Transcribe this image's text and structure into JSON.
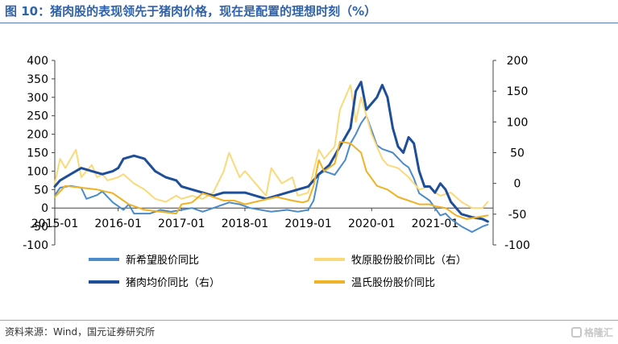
{
  "title": "图 10：猪肉股的表现领先于猪肉价格，现在是配置的理想时刻（%）",
  "source": "资料来源：Wind，国元证券研究所",
  "watermark": "格隆汇",
  "chart_data": {
    "type": "line",
    "left_axis": {
      "min": -100,
      "max": 400,
      "ticks": [
        -100,
        -50,
        0,
        50,
        100,
        150,
        200,
        250,
        300,
        350,
        400
      ]
    },
    "right_axis": {
      "min": -100,
      "max": 200,
      "ticks": [
        -100,
        -50,
        0,
        50,
        100,
        150,
        200
      ]
    },
    "x_start": "2015-01",
    "x_end": "2021-12",
    "x_ticks": [
      "2015-01",
      "2016-01",
      "2017-01",
      "2018-01",
      "2019-01",
      "2020-01",
      "2021-01"
    ],
    "legend_position": "bottom",
    "series": [
      {
        "name": "新希望股价同比",
        "axis": "left",
        "color": "#4a8bcb",
        "width": 2,
        "points": [
          [
            "2015-01",
            35
          ],
          [
            "2015-02",
            55
          ],
          [
            "2015-04",
            60
          ],
          [
            "2015-06",
            55
          ],
          [
            "2015-07",
            25
          ],
          [
            "2015-09",
            35
          ],
          [
            "2015-10",
            45
          ],
          [
            "2015-12",
            15
          ],
          [
            "2016-01",
            5
          ],
          [
            "2016-02",
            -5
          ],
          [
            "2016-03",
            10
          ],
          [
            "2016-04",
            -15
          ],
          [
            "2016-07",
            -15
          ],
          [
            "2016-09",
            -5
          ],
          [
            "2016-11",
            -10
          ],
          [
            "2017-01",
            -5
          ],
          [
            "2017-03",
            0
          ],
          [
            "2017-05",
            -10
          ],
          [
            "2017-08",
            5
          ],
          [
            "2017-10",
            15
          ],
          [
            "2017-12",
            10
          ],
          [
            "2018-02",
            0
          ],
          [
            "2018-04",
            -5
          ],
          [
            "2018-06",
            -10
          ],
          [
            "2018-09",
            -5
          ],
          [
            "2018-11",
            -10
          ],
          [
            "2019-01",
            -5
          ],
          [
            "2019-02",
            20
          ],
          [
            "2019-03",
            90
          ],
          [
            "2019-04",
            100
          ],
          [
            "2019-06",
            90
          ],
          [
            "2019-08",
            130
          ],
          [
            "2019-09",
            175
          ],
          [
            "2019-10",
            200
          ],
          [
            "2019-11",
            230
          ],
          [
            "2019-12",
            250
          ],
          [
            "2020-01",
            210
          ],
          [
            "2020-02",
            170
          ],
          [
            "2020-03",
            160
          ],
          [
            "2020-05",
            150
          ],
          [
            "2020-07",
            120
          ],
          [
            "2020-08",
            110
          ],
          [
            "2020-09",
            80
          ],
          [
            "2020-10",
            40
          ],
          [
            "2020-12",
            20
          ],
          [
            "2021-01",
            0
          ],
          [
            "2021-02",
            -20
          ],
          [
            "2021-03",
            -15
          ],
          [
            "2021-04",
            -30
          ],
          [
            "2021-06",
            -50
          ],
          [
            "2021-08",
            -65
          ],
          [
            "2021-10",
            -50
          ],
          [
            "2021-11",
            -45
          ]
        ]
      },
      {
        "name": "牧原股份股价同比（右）",
        "axis": "right",
        "color": "#fad97a",
        "width": 2,
        "points": [
          [
            "2015-01",
            0
          ],
          [
            "2015-02",
            40
          ],
          [
            "2015-03",
            25
          ],
          [
            "2015-05",
            55
          ],
          [
            "2015-06",
            10
          ],
          [
            "2015-08",
            30
          ],
          [
            "2015-09",
            10
          ],
          [
            "2015-10",
            15
          ],
          [
            "2015-11",
            5
          ],
          [
            "2016-01",
            10
          ],
          [
            "2016-02",
            15
          ],
          [
            "2016-04",
            0
          ],
          [
            "2016-06",
            -10
          ],
          [
            "2016-08",
            -25
          ],
          [
            "2016-10",
            -30
          ],
          [
            "2016-12",
            -20
          ],
          [
            "2017-01",
            -25
          ],
          [
            "2017-03",
            -20
          ],
          [
            "2017-05",
            -25
          ],
          [
            "2017-07",
            -15
          ],
          [
            "2017-09",
            20
          ],
          [
            "2017-10",
            50
          ],
          [
            "2017-12",
            10
          ],
          [
            "2018-01",
            20
          ],
          [
            "2018-03",
            0
          ],
          [
            "2018-05",
            -20
          ],
          [
            "2018-06",
            25
          ],
          [
            "2018-08",
            0
          ],
          [
            "2018-10",
            10
          ],
          [
            "2018-11",
            -20
          ],
          [
            "2019-01",
            -15
          ],
          [
            "2019-02",
            20
          ],
          [
            "2019-03",
            55
          ],
          [
            "2019-04",
            40
          ],
          [
            "2019-06",
            60
          ],
          [
            "2019-07",
            120
          ],
          [
            "2019-08",
            140
          ],
          [
            "2019-09",
            160
          ],
          [
            "2019-10",
            100
          ],
          [
            "2019-11",
            140
          ],
          [
            "2019-12",
            110
          ],
          [
            "2020-01",
            80
          ],
          [
            "2020-02",
            60
          ],
          [
            "2020-03",
            40
          ],
          [
            "2020-04",
            30
          ],
          [
            "2020-06",
            25
          ],
          [
            "2020-08",
            10
          ],
          [
            "2020-09",
            0
          ],
          [
            "2020-10",
            -10
          ],
          [
            "2020-12",
            -5
          ],
          [
            "2021-01",
            -15
          ],
          [
            "2021-02",
            -20
          ],
          [
            "2021-04",
            -15
          ],
          [
            "2021-06",
            -30
          ],
          [
            "2021-08",
            -40
          ],
          [
            "2021-10",
            -40
          ],
          [
            "2021-11",
            -30
          ]
        ]
      },
      {
        "name": "猪肉均价同比（右）",
        "axis": "right",
        "color": "#1f4e98",
        "width": 3,
        "points": [
          [
            "2015-01",
            -5
          ],
          [
            "2015-02",
            5
          ],
          [
            "2015-04",
            15
          ],
          [
            "2015-06",
            25
          ],
          [
            "2015-08",
            20
          ],
          [
            "2015-10",
            15
          ],
          [
            "2015-12",
            20
          ],
          [
            "2016-01",
            25
          ],
          [
            "2016-02",
            40
          ],
          [
            "2016-04",
            45
          ],
          [
            "2016-06",
            40
          ],
          [
            "2016-08",
            20
          ],
          [
            "2016-10",
            10
          ],
          [
            "2016-12",
            5
          ],
          [
            "2017-01",
            -5
          ],
          [
            "2017-03",
            -10
          ],
          [
            "2017-05",
            -15
          ],
          [
            "2017-07",
            -20
          ],
          [
            "2017-09",
            -15
          ],
          [
            "2017-11",
            -15
          ],
          [
            "2018-01",
            -15
          ],
          [
            "2018-03",
            -20
          ],
          [
            "2018-05",
            -25
          ],
          [
            "2018-07",
            -20
          ],
          [
            "2018-09",
            -15
          ],
          [
            "2018-11",
            -10
          ],
          [
            "2019-01",
            -5
          ],
          [
            "2019-02",
            5
          ],
          [
            "2019-03",
            15
          ],
          [
            "2019-05",
            30
          ],
          [
            "2019-07",
            60
          ],
          [
            "2019-09",
            90
          ],
          [
            "2019-10",
            150
          ],
          [
            "2019-11",
            165
          ],
          [
            "2019-12",
            120
          ],
          [
            "2020-01",
            130
          ],
          [
            "2020-02",
            140
          ],
          [
            "2020-03",
            160
          ],
          [
            "2020-04",
            140
          ],
          [
            "2020-05",
            90
          ],
          [
            "2020-06",
            60
          ],
          [
            "2020-07",
            50
          ],
          [
            "2020-08",
            75
          ],
          [
            "2020-09",
            65
          ],
          [
            "2020-10",
            20
          ],
          [
            "2020-11",
            -5
          ],
          [
            "2020-12",
            -5
          ],
          [
            "2021-01",
            -15
          ],
          [
            "2021-02",
            0
          ],
          [
            "2021-03",
            -10
          ],
          [
            "2021-04",
            -30
          ],
          [
            "2021-06",
            -50
          ],
          [
            "2021-08",
            -55
          ],
          [
            "2021-10",
            -58
          ],
          [
            "2021-11",
            -62
          ]
        ]
      },
      {
        "name": "温氏股份股价同比",
        "axis": "left",
        "color": "#f0b225",
        "width": 2,
        "points": [
          [
            "2015-01",
            30
          ],
          [
            "2015-03",
            60
          ],
          [
            "2015-06",
            55
          ],
          [
            "2015-09",
            50
          ],
          [
            "2015-12",
            40
          ],
          [
            "2016-01",
            30
          ],
          [
            "2016-03",
            10
          ],
          [
            "2016-06",
            -5
          ],
          [
            "2016-09",
            -10
          ],
          [
            "2016-12",
            -15
          ],
          [
            "2017-01",
            10
          ],
          [
            "2017-03",
            15
          ],
          [
            "2017-05",
            40
          ],
          [
            "2017-07",
            30
          ],
          [
            "2017-09",
            20
          ],
          [
            "2017-11",
            20
          ],
          [
            "2018-01",
            10
          ],
          [
            "2018-04",
            20
          ],
          [
            "2018-07",
            30
          ],
          [
            "2018-10",
            20
          ],
          [
            "2018-12",
            15
          ],
          [
            "2019-01",
            20
          ],
          [
            "2019-02",
            60
          ],
          [
            "2019-03",
            130
          ],
          [
            "2019-04",
            100
          ],
          [
            "2019-06",
            120
          ],
          [
            "2019-07",
            180
          ],
          [
            "2019-09",
            175
          ],
          [
            "2019-11",
            150
          ],
          [
            "2019-12",
            100
          ],
          [
            "2020-01",
            80
          ],
          [
            "2020-02",
            60
          ],
          [
            "2020-04",
            50
          ],
          [
            "2020-06",
            30
          ],
          [
            "2020-08",
            20
          ],
          [
            "2020-10",
            10
          ],
          [
            "2020-12",
            10
          ],
          [
            "2021-01",
            5
          ],
          [
            "2021-03",
            0
          ],
          [
            "2021-05",
            -20
          ],
          [
            "2021-07",
            -30
          ],
          [
            "2021-09",
            -25
          ],
          [
            "2021-11",
            -20
          ]
        ]
      }
    ]
  }
}
